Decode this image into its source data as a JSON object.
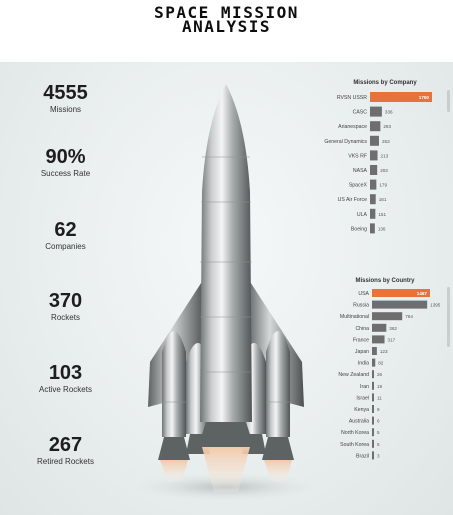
{
  "title": {
    "line1": "SPACE MISSION",
    "line2": "ANALYSIS"
  },
  "kpis": [
    {
      "value": "4555",
      "label": "Missions"
    },
    {
      "value": "90%",
      "label": "Success Rate"
    },
    {
      "value": "62",
      "label": "Companies"
    },
    {
      "value": "370",
      "label": "Rockets"
    },
    {
      "value": "103",
      "label": "Active Rockets"
    },
    {
      "value": "267",
      "label": "Retired Rockets"
    }
  ],
  "colors": {
    "highlight": "#e8733a",
    "bar": "#6e6e6e"
  },
  "chart_data": [
    {
      "type": "bar",
      "orientation": "horizontal",
      "title": "Missions by Company",
      "categories": [
        "RVSN USSR",
        "CASC",
        "Arianespace",
        "General Dynamics",
        "VKS RF",
        "NASA",
        "SpaceX",
        "US Air Force",
        "ULA",
        "Boeing"
      ],
      "values": [
        1750,
        336,
        293,
        253,
        213,
        203,
        179,
        161,
        151,
        136
      ],
      "xlim": [
        0,
        1750
      ]
    },
    {
      "type": "bar",
      "orientation": "horizontal",
      "title": "Missions by Country",
      "categories": [
        "USA",
        "Russia",
        "Multinational",
        "China",
        "France",
        "Japan",
        "India",
        "New Zealand",
        "Iran",
        "Israel",
        "Kenya",
        "Australia",
        "North Korea",
        "South Korea",
        "Brazil"
      ],
      "values": [
        1467,
        1395,
        764,
        362,
        317,
        123,
        82,
        26,
        19,
        11,
        9,
        6,
        5,
        5,
        3
      ],
      "xlim": [
        0,
        1467
      ]
    }
  ]
}
